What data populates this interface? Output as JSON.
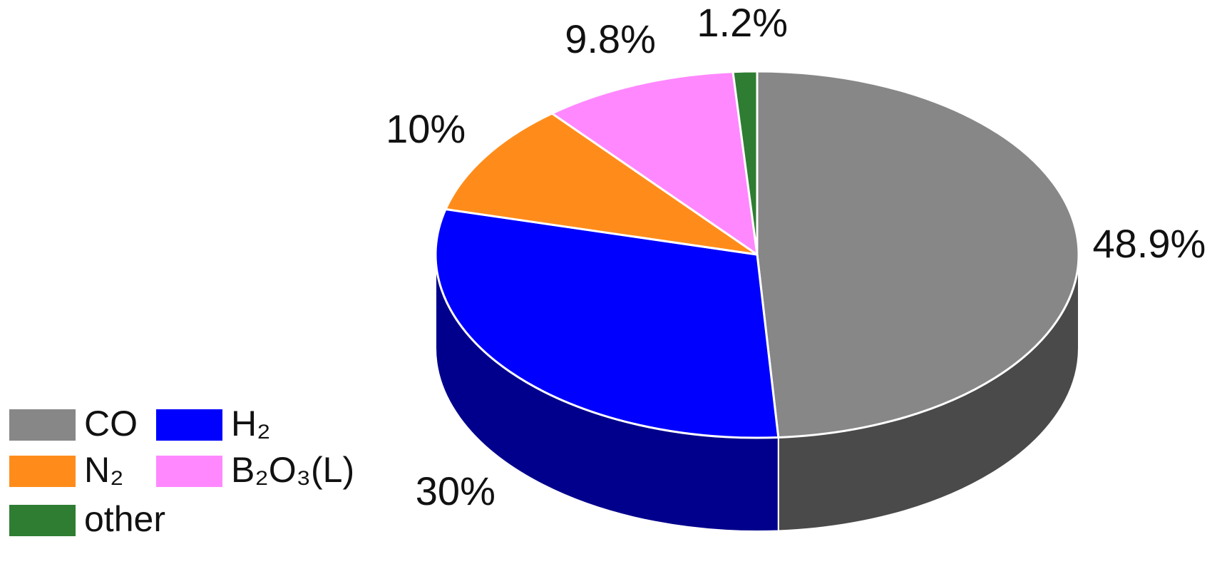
{
  "chart_data": {
    "type": "pie",
    "categories": [
      "CO",
      "H₂",
      "N₂",
      "B₂O₃(L)",
      "other"
    ],
    "values": [
      48.9,
      30,
      10,
      9.8,
      1.2
    ],
    "value_labels": [
      "48.9%",
      "30%",
      "10%",
      "9.8%",
      "1.2%"
    ],
    "colors": [
      "#878787",
      "#0000ff",
      "#ff8c1a",
      "#ff88ff",
      "#2e7d32"
    ]
  }
}
